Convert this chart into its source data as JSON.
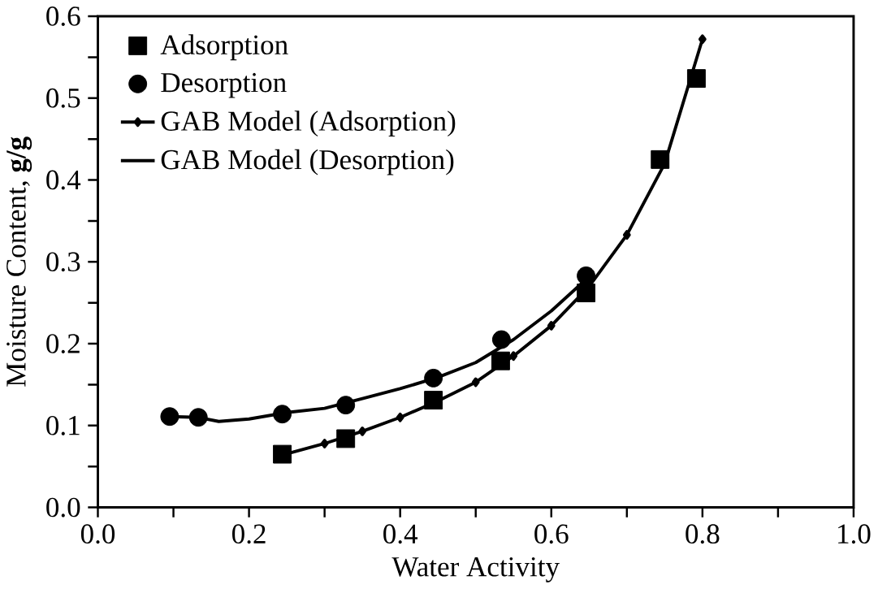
{
  "chart_data": {
    "type": "scatter",
    "xlabel": "Water Activity",
    "ylabel": "Moisture Content, **g/g**",
    "xlim": [
      0,
      1
    ],
    "ylim": [
      0,
      0.6
    ],
    "xticks": [
      {
        "value": 0,
        "label": "0.0"
      },
      {
        "value": 0.2,
        "label": "0.2"
      },
      {
        "value": 0.4,
        "label": "0.4"
      },
      {
        "value": 0.6,
        "label": "0.6"
      },
      {
        "value": 0.8,
        "label": "0.8"
      },
      {
        "value": 1,
        "label": "1.0"
      }
    ],
    "yticks": [
      {
        "value": 0,
        "label": "0.0"
      },
      {
        "value": 0.1,
        "label": "0.1"
      },
      {
        "value": 0.2,
        "label": "0.2"
      },
      {
        "value": 0.3,
        "label": "0.3"
      },
      {
        "value": 0.4,
        "label": "0.4"
      },
      {
        "value": 0.5,
        "label": "0.5"
      },
      {
        "value": 0.6,
        "label": "0.6"
      }
    ],
    "legend": "top left",
    "grid": false,
    "series": [
      {
        "name": "Adsorption",
        "marker": "square",
        "color": "#000000",
        "x": [
          0.244,
          0.328,
          0.444,
          0.533,
          0.646,
          0.744,
          0.792
        ],
        "values": [
          0.065,
          0.084,
          0.131,
          0.179,
          0.262,
          0.425,
          0.524
        ]
      },
      {
        "name": "Desorption",
        "marker": "circle",
        "color": "#000000",
        "x": [
          0.095,
          0.133,
          0.244,
          0.328,
          0.444,
          0.534,
          0.646
        ],
        "values": [
          0.111,
          0.11,
          0.114,
          0.125,
          0.158,
          0.205,
          0.283
        ]
      },
      {
        "name": "GAB Model (Adsorption)",
        "type": "line",
        "marker": "diamond",
        "line_style": "solid",
        "color": "#000000",
        "x": [
          0.244,
          0.3,
          0.35,
          0.4,
          0.45,
          0.5,
          0.55,
          0.6,
          0.65,
          0.7,
          0.75,
          0.8
        ],
        "values": [
          0.064,
          0.078,
          0.093,
          0.11,
          0.13,
          0.153,
          0.185,
          0.222,
          0.27,
          0.333,
          0.42,
          0.572
        ]
      },
      {
        "name": "GAB Model (Desorption)",
        "type": "line",
        "marker": "none",
        "line_style": "solid",
        "color": "#000000",
        "x": [
          0.095,
          0.133,
          0.16,
          0.2,
          0.25,
          0.3,
          0.35,
          0.4,
          0.45,
          0.5,
          0.55,
          0.6,
          0.65
        ],
        "values": [
          0.111,
          0.11,
          0.105,
          0.108,
          0.116,
          0.121,
          0.133,
          0.145,
          0.159,
          0.177,
          0.205,
          0.24,
          0.282
        ]
      }
    ]
  }
}
